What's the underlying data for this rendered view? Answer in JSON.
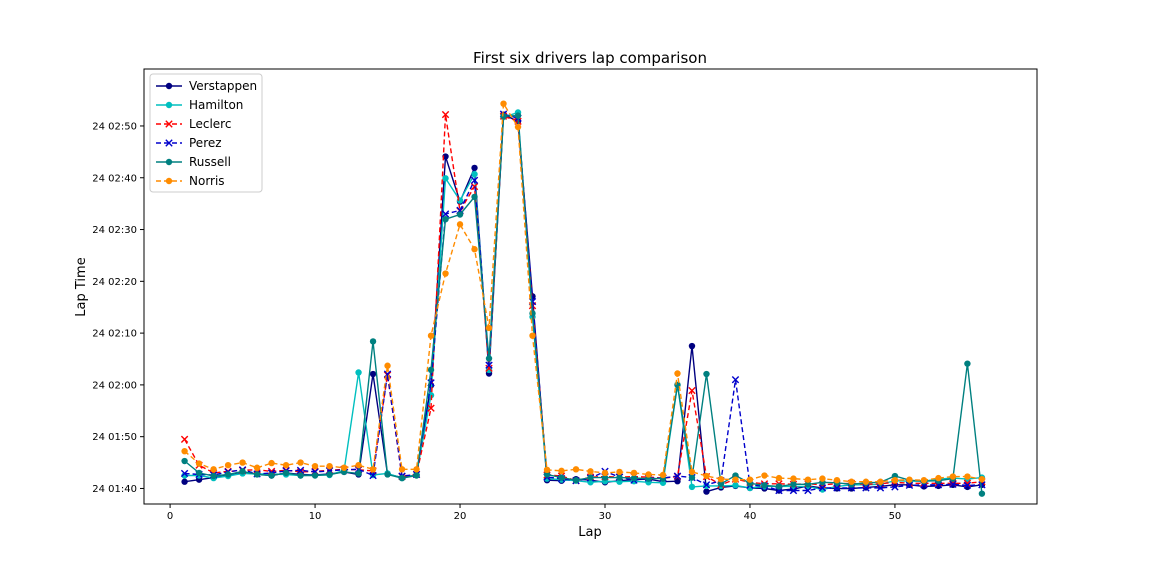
{
  "chart_data": {
    "type": "line",
    "title": "First six drivers lap comparison",
    "xlabel": "Lap",
    "ylabel": "Lap Time",
    "xlim": [
      -1.8,
      59.8
    ],
    "ylim": [
      97,
      181
    ],
    "x_ticks": [
      0,
      10,
      20,
      30,
      40,
      50
    ],
    "y_ticks": [
      {
        "value": 100,
        "label": "24 01:40"
      },
      {
        "value": 110,
        "label": "24 01:50"
      },
      {
        "value": 120,
        "label": "24 02:00"
      },
      {
        "value": 130,
        "label": "24 02:10"
      },
      {
        "value": 140,
        "label": "24 02:20"
      },
      {
        "value": 150,
        "label": "24 02:30"
      },
      {
        "value": 160,
        "label": "24 02:40"
      },
      {
        "value": 170,
        "label": "24 02:50"
      }
    ],
    "grid": false,
    "legend": "top-left",
    "laps": [
      1,
      2,
      3,
      4,
      5,
      6,
      7,
      8,
      9,
      10,
      11,
      12,
      13,
      14,
      15,
      16,
      17,
      18,
      19,
      20,
      21,
      22,
      23,
      24,
      25,
      26,
      27,
      28,
      29,
      30,
      31,
      32,
      33,
      34,
      35,
      36,
      37,
      38,
      39,
      40,
      41,
      42,
      43,
      44,
      45,
      46,
      47,
      48,
      49,
      50,
      51,
      52,
      53,
      54,
      55,
      56
    ],
    "series": [
      {
        "name": "Verstappen",
        "color": "#000080",
        "dash": "",
        "marker": "circle",
        "values": [
          101.3,
          101.7,
          102.1,
          102.5,
          103.0,
          102.8,
          102.5,
          103.0,
          102.7,
          102.6,
          102.8,
          103.2,
          102.7,
          122.1,
          102.8,
          102.1,
          102.6,
          119.9,
          164.1,
          155.4,
          161.9,
          122.2,
          172.2,
          170.9,
          137.1,
          101.6,
          101.5,
          101.8,
          101.6,
          101.2,
          101.5,
          101.7,
          101.8,
          101.3,
          101.4,
          127.5,
          99.4,
          100.2,
          100.5,
          100.1,
          100.0,
          99.6,
          99.9,
          100.5,
          100.1,
          100.0,
          100.0,
          100.2,
          100.4,
          100.7,
          100.7,
          100.4,
          100.5,
          100.7,
          100.3,
          100.7
        ]
      },
      {
        "name": "Hamilton",
        "color": "#00bfbf",
        "dash": "",
        "marker": "circle",
        "values": [
          102.5,
          102.5,
          102.0,
          102.4,
          102.9,
          102.8,
          102.8,
          102.7,
          102.5,
          102.6,
          102.6,
          103.5,
          122.4,
          102.6,
          102.9,
          102.0,
          102.7,
          118.0,
          159.9,
          155.6,
          160.7,
          122.9,
          171.7,
          172.6,
          133.1,
          101.9,
          101.7,
          101.5,
          101.2,
          101.4,
          101.3,
          101.4,
          101.2,
          101.1,
          120.0,
          100.3,
          100.5,
          100.5,
          100.6,
          100.1,
          100.4,
          100.4,
          100.4,
          100.4,
          99.8,
          100.4,
          100.7,
          100.7,
          100.8,
          101.5,
          101.4,
          101.4,
          101.8,
          102.0,
          101.8,
          102.1
        ]
      },
      {
        "name": "Leclerc",
        "color": "#ff0000",
        "dash": "5,3",
        "marker": "x",
        "values": [
          109.5,
          104.5,
          103.0,
          103.3,
          103.5,
          103.6,
          103.3,
          103.5,
          103.2,
          103.3,
          103.5,
          103.7,
          103.6,
          103.4,
          121.9,
          102.3,
          102.7,
          115.5,
          172.2,
          153.6,
          158.3,
          123.2,
          171.9,
          170.9,
          135.3,
          102.6,
          102.4,
          101.5,
          102.2,
          102.3,
          102.2,
          102.3,
          102.2,
          102.0,
          102.3,
          118.9,
          102.3,
          100.7,
          101.8,
          101.2,
          100.9,
          100.9,
          100.8,
          100.9,
          100.7,
          100.9,
          101.0,
          100.8,
          100.9,
          101.2,
          101.0,
          101.0,
          101.0,
          101.0,
          101.0,
          101.3
        ]
      },
      {
        "name": "Perez",
        "color": "#0000cc",
        "dash": "5,3",
        "marker": "x",
        "values": [
          102.9,
          102.7,
          102.6,
          103.2,
          103.6,
          102.8,
          103.0,
          103.4,
          103.5,
          103.2,
          103.4,
          103.6,
          103.7,
          102.5,
          122.1,
          102.4,
          102.7,
          120.4,
          153.0,
          153.7,
          159.5,
          123.8,
          172.3,
          171.5,
          136.1,
          102.2,
          101.9,
          101.5,
          102.0,
          103.3,
          102.2,
          101.6,
          102.0,
          102.0,
          102.4,
          102.1,
          100.7,
          101.5,
          121.0,
          100.6,
          100.5,
          99.6,
          99.6,
          99.6,
          100.1,
          100.1,
          100.1,
          100.1,
          100.1,
          100.3,
          100.6,
          100.7,
          100.7,
          100.8,
          100.6,
          100.7
        ]
      },
      {
        "name": "Russell",
        "color": "#008080",
        "dash": "",
        "marker": "circle",
        "values": [
          105.3,
          103.0,
          102.4,
          102.7,
          103.3,
          102.7,
          102.5,
          103.0,
          102.5,
          102.5,
          102.7,
          103.2,
          102.9,
          128.4,
          102.7,
          102.0,
          102.5,
          122.9,
          152.0,
          152.9,
          156.3,
          125.1,
          171.9,
          172.0,
          133.8,
          102.7,
          102.1,
          101.6,
          102.1,
          102.1,
          102.1,
          102.0,
          101.9,
          101.9,
          120.0,
          102.1,
          122.1,
          100.9,
          102.5,
          101.0,
          100.6,
          100.4,
          100.8,
          100.8,
          101.2,
          101.1,
          100.8,
          101.1,
          101.2,
          102.4,
          101.6,
          101.4,
          101.5,
          101.9,
          124.1,
          99.0
        ]
      },
      {
        "name": "Norris",
        "color": "#ff8c00",
        "dash": "5,3",
        "marker": "circle",
        "values": [
          107.2,
          104.8,
          103.7,
          104.5,
          105.0,
          104.0,
          104.9,
          104.5,
          105.0,
          104.3,
          104.3,
          104.0,
          104.5,
          103.7,
          123.7,
          103.7,
          103.7,
          129.5,
          141.5,
          151.0,
          146.2,
          131.0,
          174.3,
          169.8,
          129.5,
          103.6,
          103.4,
          103.7,
          103.3,
          103.0,
          103.2,
          103.0,
          102.7,
          102.6,
          122.2,
          103.2,
          102.4,
          101.8,
          101.7,
          101.7,
          102.5,
          102.0,
          101.9,
          101.7,
          101.9,
          101.6,
          101.3,
          101.3,
          101.3,
          101.6,
          101.7,
          101.6,
          102.0,
          102.3,
          102.3,
          101.8
        ]
      }
    ]
  }
}
